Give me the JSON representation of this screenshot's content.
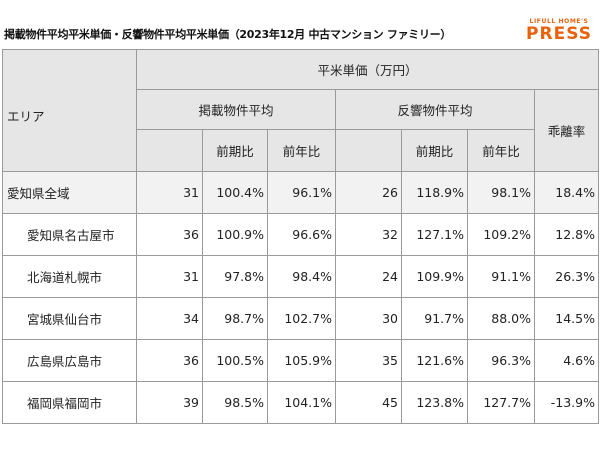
{
  "title": "掲載物件平均平米単価・反響物件平均平米単価（2023年12月 中古マンション ファミリー）",
  "logo": {
    "top": "LIFULL HOME'S",
    "main": "PRESS"
  },
  "colors": {
    "accent": "#e8620e",
    "header_bg": "#e6e6e6",
    "highlight_row_bg": "#f2f2f2",
    "border": "#9a9a9a"
  },
  "table": {
    "area_header": "エリア",
    "unit_header": "平米単価（万円）",
    "listing_header": "掲載物件平均",
    "response_header": "反響物件平均",
    "gap_header": "乖離率",
    "prev_period": "前期比",
    "prev_year": "前年比",
    "rows": [
      {
        "area": "愛知県全域",
        "listing": "31",
        "listing_qoq": "100.4%",
        "listing_yoy": "96.1%",
        "response": "26",
        "response_qoq": "118.9%",
        "response_yoy": "98.1%",
        "gap": "18.4%"
      },
      {
        "area": "愛知県名古屋市",
        "listing": "36",
        "listing_qoq": "100.9%",
        "listing_yoy": "96.6%",
        "response": "32",
        "response_qoq": "127.1%",
        "response_yoy": "109.2%",
        "gap": "12.8%"
      },
      {
        "area": "北海道札幌市",
        "listing": "31",
        "listing_qoq": "97.8%",
        "listing_yoy": "98.4%",
        "response": "24",
        "response_qoq": "109.9%",
        "response_yoy": "91.1%",
        "gap": "26.3%"
      },
      {
        "area": "宮城県仙台市",
        "listing": "34",
        "listing_qoq": "98.7%",
        "listing_yoy": "102.7%",
        "response": "30",
        "response_qoq": "91.7%",
        "response_yoy": "88.0%",
        "gap": "14.5%"
      },
      {
        "area": "広島県広島市",
        "listing": "36",
        "listing_qoq": "100.5%",
        "listing_yoy": "105.9%",
        "response": "35",
        "response_qoq": "121.6%",
        "response_yoy": "96.3%",
        "gap": "4.6%"
      },
      {
        "area": "福岡県福岡市",
        "listing": "39",
        "listing_qoq": "98.5%",
        "listing_yoy": "104.1%",
        "response": "45",
        "response_qoq": "123.8%",
        "response_yoy": "127.7%",
        "gap": "-13.9%"
      }
    ]
  }
}
